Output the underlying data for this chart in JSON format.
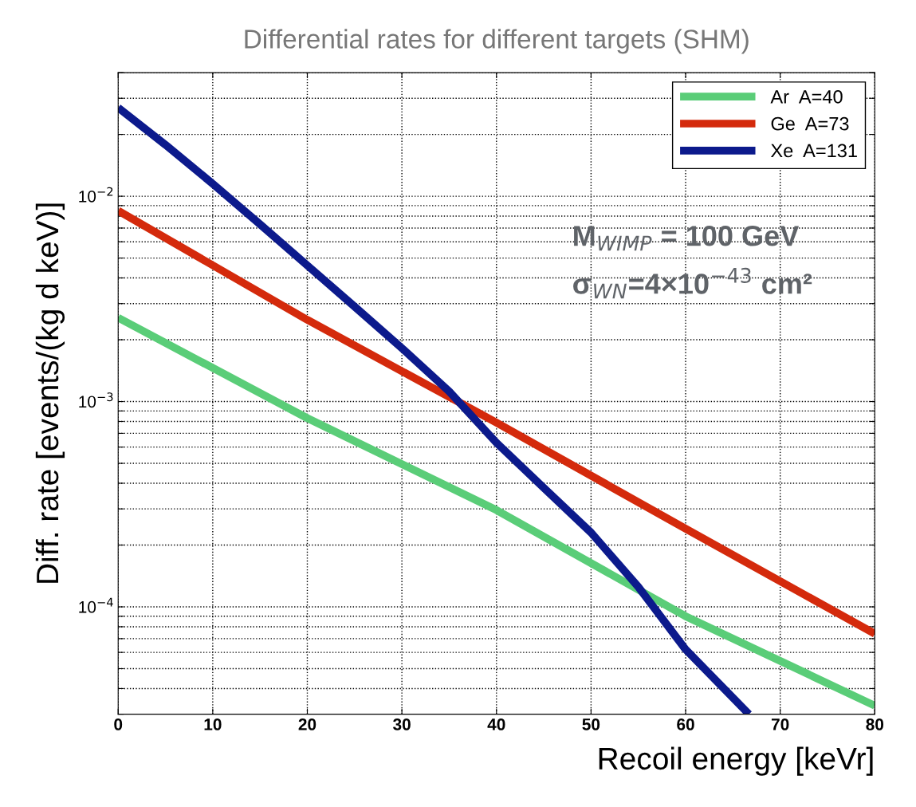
{
  "chart_data": {
    "type": "line",
    "title": "Differential rates for different targets (SHM)",
    "xlabel": "Recoil energy [keVr]",
    "ylabel": "Diff. rate [events/(kg d keV)]",
    "log": "y",
    "grid": true,
    "legend": "top right",
    "line_style": "solid",
    "marker": "none",
    "xlim": [
      0,
      80
    ],
    "xticks": [
      0,
      10,
      20,
      30,
      40,
      50,
      60,
      70,
      80
    ],
    "ylim": [
      3e-05,
      0.04
    ],
    "yticks": [
      {
        "value": 3e-05,
        "label": null
      },
      {
        "value": 4e-05,
        "label": null
      },
      {
        "value": 5e-05,
        "label": null
      },
      {
        "value": 6e-05,
        "label": null
      },
      {
        "value": 7e-05,
        "label": null
      },
      {
        "value": 8e-05,
        "label": null
      },
      {
        "value": 9e-05,
        "label": null
      },
      {
        "value": 0.0001,
        "label": "10$^{−4}$"
      },
      {
        "value": 0.0002,
        "label": null
      },
      {
        "value": 0.0003,
        "label": null
      },
      {
        "value": 0.0004,
        "label": null
      },
      {
        "value": 0.0005,
        "label": null
      },
      {
        "value": 0.0006,
        "label": null
      },
      {
        "value": 0.0007,
        "label": null
      },
      {
        "value": 0.0008,
        "label": null
      },
      {
        "value": 0.0009,
        "label": null
      },
      {
        "value": 0.001,
        "label": "10$^{−3}$"
      },
      {
        "value": 0.002,
        "label": null
      },
      {
        "value": 0.003,
        "label": null
      },
      {
        "value": 0.004,
        "label": null
      },
      {
        "value": 0.005,
        "label": null
      },
      {
        "value": 0.006,
        "label": null
      },
      {
        "value": 0.007,
        "label": null
      },
      {
        "value": 0.008,
        "label": null
      },
      {
        "value": 0.009,
        "label": null
      },
      {
        "value": 0.01,
        "label": "10$^{−2}$"
      },
      {
        "value": 0.02,
        "label": null
      },
      {
        "value": 0.03,
        "label": null
      },
      {
        "value": 0.04,
        "label": null
      }
    ],
    "annotations": [
      "M$_{WIMP}$ = 100 GeV",
      "σ$_{WN}$=4×10$^{−43}$ cm²"
    ],
    "series": [
      {
        "name": "Ar  A=40",
        "color": "#5acd78",
        "x": [
          0,
          20,
          40,
          60,
          80
        ],
        "values": [
          0.00256,
          0.00083,
          0.000296,
          9e-05,
          3.3e-05
        ]
      },
      {
        "name": "Ge  A=73",
        "color": "#d42a0c",
        "x": [
          0,
          20,
          40,
          60,
          80
        ],
        "values": [
          0.0085,
          0.0025,
          0.00079,
          0.00024,
          7.4e-05
        ]
      },
      {
        "name": "Xe  A=131",
        "color": "#0c1a8c",
        "x": [
          0,
          5,
          10,
          15,
          20,
          25,
          30,
          35,
          40,
          45,
          50,
          55,
          60,
          66.7
        ],
        "values": [
          0.027,
          0.0178,
          0.0115,
          0.0073,
          0.0046,
          0.0029,
          0.00182,
          0.00112,
          0.00063,
          0.00038,
          0.00023,
          0.000125,
          6.2e-05,
          3e-05
        ]
      }
    ]
  }
}
